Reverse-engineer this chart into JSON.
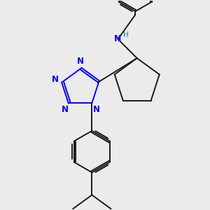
{
  "bg_color": "#ebebeb",
  "bond_color": "#1a1a1a",
  "n_color": "#0000ff",
  "nh_color": "#008b8b",
  "lw": 1.4,
  "fig_size": [
    3.0,
    3.0
  ],
  "dpi": 100,
  "xlim": [
    -2.5,
    3.5
  ],
  "ylim": [
    -3.5,
    2.5
  ]
}
